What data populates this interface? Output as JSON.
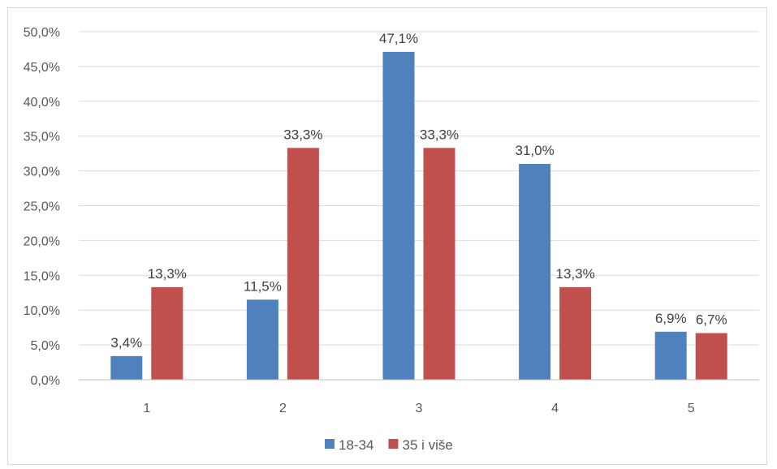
{
  "chart_data": {
    "type": "bar",
    "categories": [
      "1",
      "2",
      "3",
      "4",
      "5"
    ],
    "series": [
      {
        "name": "18-34",
        "color": "#4f81bd",
        "values": [
          3.4,
          11.5,
          47.1,
          31.0,
          6.9
        ],
        "labels": [
          "3,4%",
          "11,5%",
          "47,1%",
          "31,0%",
          "6,9%"
        ]
      },
      {
        "name": "35 i više",
        "color": "#c0504d",
        "values": [
          13.3,
          33.3,
          33.3,
          13.3,
          6.7
        ],
        "labels": [
          "13,3%",
          "33,3%",
          "33,3%",
          "13,3%",
          "6,7%"
        ]
      }
    ],
    "ylim": [
      0,
      50
    ],
    "yticks": [
      0,
      5,
      10,
      15,
      20,
      25,
      30,
      35,
      40,
      45,
      50
    ],
    "ytick_labels": [
      "0,0%",
      "5,0%",
      "10,0%",
      "15,0%",
      "20,0%",
      "25,0%",
      "30,0%",
      "35,0%",
      "40,0%",
      "45,0%",
      "50,0%"
    ],
    "grid": true,
    "legend_position": "bottom"
  }
}
